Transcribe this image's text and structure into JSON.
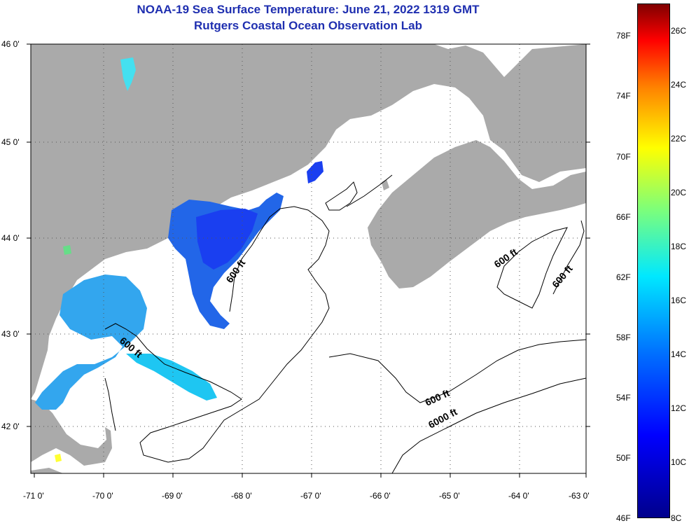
{
  "header": {
    "title": "NOAA-19 Sea Surface Temperature:  June 21, 2022 1319 GMT",
    "subtitle": "Rutgers Coastal Ocean Observation Lab"
  },
  "map": {
    "lat_labels": [
      "46 0'",
      "45 0'",
      "44 0'",
      "43 0'",
      "42 0'"
    ],
    "lon_labels": [
      "-71 0'",
      "-70 0'",
      "-69 0'",
      "-68 0'",
      "-67 0'",
      "-66 0'",
      "-65 0'",
      "-64 0'",
      "-63 0'"
    ],
    "contour_labels": [
      "600 ft",
      "600 ft",
      "600 ft",
      "600 ft",
      "600 ft",
      "6000 ft"
    ],
    "colors": {
      "land": "#aaaaaa",
      "ocean": "#ffffff",
      "cold": "#1f3fe0",
      "mid": "#33a6ee",
      "warm": "#19c8f0"
    }
  },
  "colorbar": {
    "fahrenheit": [
      "78F",
      "74F",
      "70F",
      "66F",
      "62F",
      "58F",
      "54F",
      "50F",
      "46F"
    ],
    "celsius": [
      "26C",
      "24C",
      "22C",
      "20C",
      "18C",
      "16C",
      "14C",
      "12C",
      "10C",
      "8C"
    ]
  }
}
